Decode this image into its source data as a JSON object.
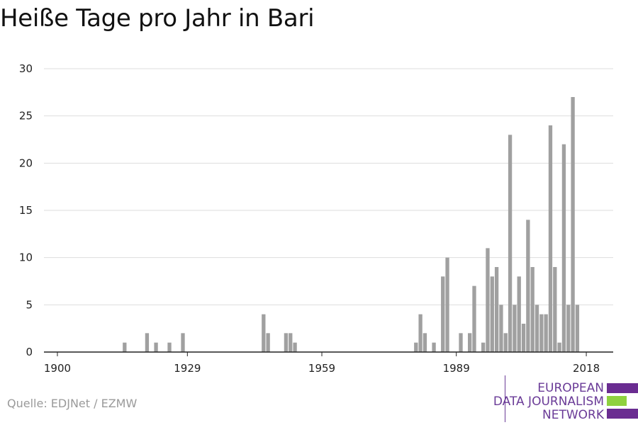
{
  "title": "Heiße Tage pro Jahr in Bari",
  "source": "Quelle: EDJNet / EZMW",
  "logo": {
    "lines": [
      "EUROPEAN",
      "DATA JOURNALISM",
      "NETWORK"
    ],
    "colors": {
      "purple": "#6a2c91",
      "green": "#8fd13f"
    }
  },
  "colors": {
    "bar": "#a0a0a0",
    "grid": "#dddddd",
    "axis": "#222222"
  },
  "chart_data": {
    "type": "bar",
    "title": "Heiße Tage pro Jahr in Bari",
    "xlabel": "",
    "ylabel": "",
    "xlim": [
      1897,
      2024
    ],
    "ylim": [
      0,
      30
    ],
    "yticks": [
      0,
      5,
      10,
      15,
      20,
      25,
      30
    ],
    "xticks": [
      1900,
      1929,
      1959,
      1989,
      2018
    ],
    "grid": true,
    "x": [
      1915,
      1920,
      1922,
      1925,
      1928,
      1946,
      1947,
      1951,
      1952,
      1953,
      1980,
      1981,
      1982,
      1984,
      1986,
      1987,
      1990,
      1992,
      1993,
      1995,
      1996,
      1997,
      1998,
      1999,
      2000,
      2001,
      2002,
      2003,
      2004,
      2005,
      2006,
      2007,
      2008,
      2009,
      2010,
      2011,
      2012,
      2013,
      2014,
      2015,
      2016,
      2017,
      2018,
      2019
    ],
    "values": [
      1,
      2,
      1,
      1,
      2,
      4,
      2,
      2,
      2,
      1,
      1,
      4,
      2,
      1,
      8,
      10,
      2,
      2,
      7,
      1,
      11,
      8,
      9,
      5,
      2,
      23,
      5,
      8,
      3,
      14,
      9,
      5,
      4,
      4,
      24,
      9,
      1,
      22,
      5,
      27,
      5,
      0,
      0,
      0
    ]
  }
}
